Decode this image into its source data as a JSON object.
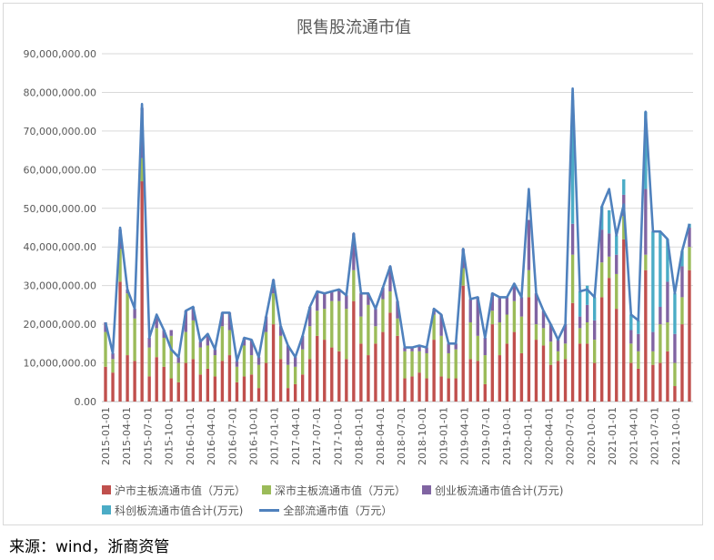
{
  "source": "来源：wind，浙商资管",
  "colors": {
    "sh_main": "#c0504d",
    "sz_main": "#9bbb59",
    "chinext": "#8064a2",
    "star": "#4bacc6",
    "total": "#4f81bd",
    "grid": "#d9d9d9",
    "axis_text": "#595959"
  },
  "chart_data": {
    "type": "bar",
    "title": "限售股流通市值",
    "xlabel": "",
    "ylabel": "",
    "ylim": [
      0,
      90000000
    ],
    "yticks": [
      0,
      10000000,
      20000000,
      30000000,
      40000000,
      50000000,
      60000000,
      70000000,
      80000000,
      90000000
    ],
    "ytick_labels": [
      "0.00",
      "10,000,000.00",
      "20,000,000.00",
      "30,000,000.00",
      "40,000,000.00",
      "50,000,000.00",
      "60,000,000.00",
      "70,000,000.00",
      "80,000,000.00",
      "90,000,000.00"
    ],
    "grid": true,
    "legend_position": "bottom",
    "stacked": true,
    "xtick_labels": [
      "2015-01-01",
      "2015-04-01",
      "2015-07-01",
      "2015-10-01",
      "2016-01-01",
      "2016-04-01",
      "2016-07-01",
      "2016-10-01",
      "2017-01-01",
      "2017-04-01",
      "2017-07-01",
      "2017-10-01",
      "2018-01-01",
      "2018-04-01",
      "2018-07-01",
      "2018-10-01",
      "2019-01-01",
      "2019-04-01",
      "2019-07-01",
      "2019-10-01",
      "2020-01-01",
      "2020-04-01",
      "2020-07-01",
      "2020-10-01",
      "2021-01-01",
      "2021-04-01",
      "2021-07-01",
      "2021-10-01"
    ],
    "series": [
      {
        "name": "沪市主板流通市值（万元）",
        "kind": "bar",
        "values": [
          9000000,
          7500000,
          31000000,
          12000000,
          10500000,
          57000000,
          6500000,
          11500000,
          9000000,
          6000000,
          5000000,
          10000000,
          11000000,
          7000000,
          8500000,
          6500000,
          10500000,
          12000000,
          5000000,
          6500000,
          7000000,
          3500000,
          10000000,
          20000000,
          11000000,
          3500000,
          4500000,
          7000000,
          11000000,
          17000000,
          16000000,
          14000000,
          13000000,
          11000000,
          26000000,
          15000000,
          12000000,
          15000000,
          18000000,
          23000000,
          17000000,
          6000000,
          6500000,
          7500000,
          6000000,
          16000000,
          6500000,
          6000000,
          6000000,
          30000000,
          11000000,
          10500000,
          4500000,
          20000000,
          12000000,
          15000000,
          18000000,
          12500000,
          27000000,
          16000000,
          14500000,
          9500000,
          10500000,
          11000000,
          25500000,
          15000000,
          15000000,
          10000000,
          27000000,
          32000000,
          24000000,
          42000000,
          10000000,
          8500000,
          34000000,
          9500000,
          10000000,
          13000000,
          4000000,
          20000000,
          34000000
        ]
      },
      {
        "name": "深市主板流通市值（万元）",
        "kind": "bar",
        "values": [
          9000000,
          3500000,
          8500000,
          16000000,
          11000000,
          6000000,
          7500000,
          7500000,
          7500000,
          11000000,
          5000000,
          8000000,
          10000000,
          7000000,
          6000000,
          5500000,
          9000000,
          6500000,
          4000000,
          8000000,
          5000000,
          6000000,
          8000000,
          8000000,
          6000000,
          6000000,
          4500000,
          6500000,
          8500000,
          6500000,
          8000000,
          12000000,
          13000000,
          13000000,
          8000000,
          7000000,
          13000000,
          4500000,
          8500000,
          5500000,
          4500000,
          7000000,
          6500000,
          5500000,
          6500000,
          6500000,
          10500000,
          6500000,
          7500000,
          4500000,
          9500000,
          6500000,
          7500000,
          3500000,
          8500000,
          7500000,
          8000000,
          9500000,
          7000000,
          4000000,
          4500000,
          6000000,
          2500000,
          4000000,
          12500000,
          4000000,
          5500000,
          6000000,
          9000000,
          5500000,
          9000000,
          6000000,
          5000000,
          4500000,
          4000000,
          3500000,
          10000000,
          7500000,
          6000000,
          7000000,
          6000000
        ]
      },
      {
        "name": "创业板流通市值合计(万元)",
        "kind": "bar",
        "values": [
          2500000,
          1500000,
          5000000,
          1000000,
          2500000,
          13000000,
          2500000,
          3000000,
          2000000,
          1500000,
          1500000,
          5500000,
          3500000,
          1500000,
          3000000,
          1500000,
          3500000,
          4500000,
          1500000,
          2000000,
          4000000,
          2000000,
          4000000,
          3500000,
          2500000,
          5000000,
          2500000,
          3500000,
          5000000,
          5000000,
          4000000,
          2500000,
          3000000,
          3500000,
          9500000,
          6000000,
          3000000,
          4500000,
          3000000,
          6500000,
          4500000,
          1000000,
          1000000,
          1500000,
          1500000,
          1500000,
          5500000,
          2500000,
          1500000,
          5000000,
          6000000,
          10000000,
          4500000,
          4500000,
          6500000,
          4500000,
          4500000,
          5000000,
          13000000,
          8000000,
          4500000,
          4500000,
          3000000,
          5000000,
          8000000,
          3000000,
          4500000,
          5000000,
          8500000,
          6000000,
          5000000,
          5500000,
          3500000,
          4500000,
          17000000,
          5000000,
          4500000,
          10500000,
          7500000,
          8000000,
          5000000
        ]
      },
      {
        "name": "科创板流通市值合计(万元)",
        "kind": "bar",
        "values": [
          0,
          0,
          0,
          0,
          0,
          0,
          0,
          0,
          0,
          0,
          0,
          0,
          0,
          0,
          0,
          0,
          0,
          0,
          0,
          0,
          0,
          0,
          0,
          0,
          0,
          0,
          0,
          0,
          0,
          0,
          0,
          0,
          0,
          0,
          0,
          0,
          0,
          0,
          0,
          0,
          0,
          0,
          0,
          0,
          0,
          0,
          0,
          0,
          0,
          0,
          0,
          0,
          0,
          0,
          0,
          0,
          0,
          0,
          0,
          0,
          0,
          0,
          0,
          0,
          32000000,
          6500000,
          5000000,
          6000000,
          6000000,
          6000000,
          5000000,
          4000000,
          4000000,
          3500000,
          20000000,
          26000000,
          19500000,
          11000000,
          10500000,
          4000000,
          1000000
        ]
      },
      {
        "name": "全部流通市值（万元）",
        "kind": "line",
        "values": [
          20500000,
          12500000,
          45000000,
          29000000,
          24000000,
          77000000,
          16500000,
          22500000,
          18500000,
          13500000,
          11500000,
          23500000,
          24500000,
          15500000,
          17500000,
          13500000,
          23000000,
          23000000,
          10500000,
          16500000,
          16000000,
          11500000,
          22000000,
          31500000,
          19500000,
          14500000,
          11500000,
          17000000,
          24500000,
          28500000,
          28000000,
          28500000,
          29000000,
          27500000,
          43500000,
          28000000,
          28000000,
          24000000,
          29500000,
          35000000,
          26000000,
          14000000,
          14000000,
          14500000,
          14000000,
          24000000,
          22500000,
          15000000,
          15000000,
          39500000,
          26500000,
          27000000,
          16500000,
          28000000,
          27000000,
          27000000,
          30500000,
          27000000,
          55000000,
          28000000,
          23500000,
          20000000,
          16000000,
          20000000,
          81000000,
          28500000,
          29000000,
          27000000,
          50500000,
          55000000,
          43000000,
          51000000,
          22500000,
          21000000,
          75000000,
          44000000,
          44000000,
          42000000,
          28000000,
          39000000,
          46000000
        ]
      }
    ]
  }
}
